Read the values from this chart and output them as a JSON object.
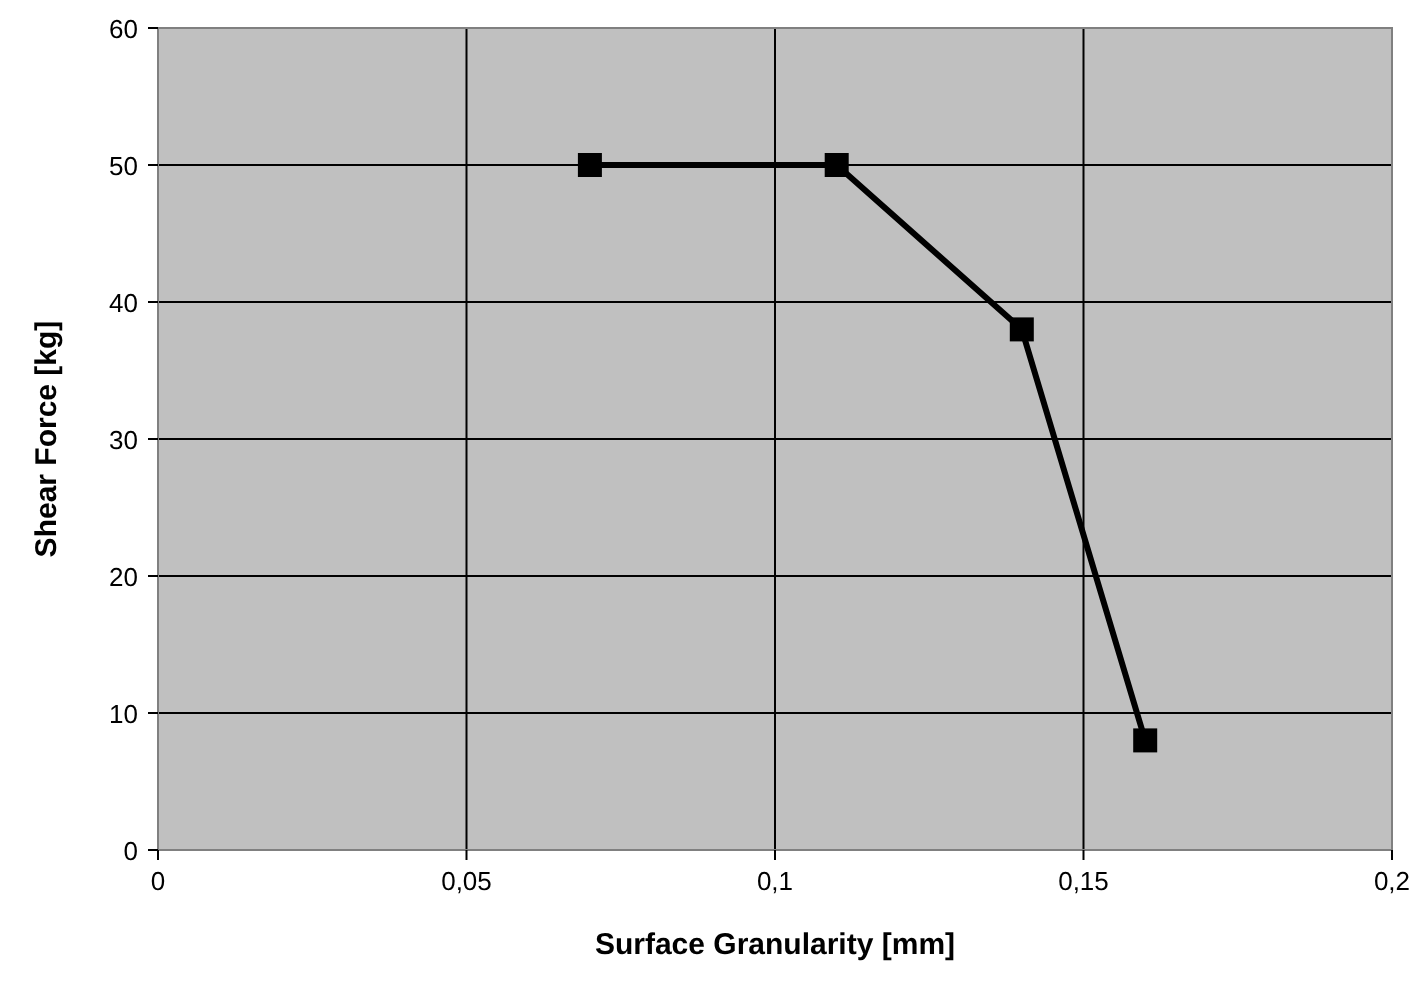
{
  "chart_data": {
    "type": "line",
    "xlabel": "Surface Granularity [mm]",
    "ylabel": "Shear Force [kg]",
    "x": [
      0.07,
      0.11,
      0.14,
      0.16
    ],
    "series": [
      {
        "color": "#000000",
        "values": [
          50,
          50,
          38,
          8
        ]
      }
    ],
    "xlim": [
      0,
      0.2
    ],
    "xticks": [
      0,
      {
        "value": 0.05,
        "label": "0,05"
      },
      {
        "value": 0.1,
        "label": "0,1"
      },
      {
        "value": 0.15,
        "label": "0,15"
      },
      {
        "value": 0.2,
        "label": "0,2"
      }
    ],
    "ylim": [
      0,
      60
    ],
    "yticks": [
      0,
      10,
      20,
      30,
      40,
      50,
      60
    ],
    "grid": true,
    "marker": "square",
    "line_style": "solid"
  }
}
